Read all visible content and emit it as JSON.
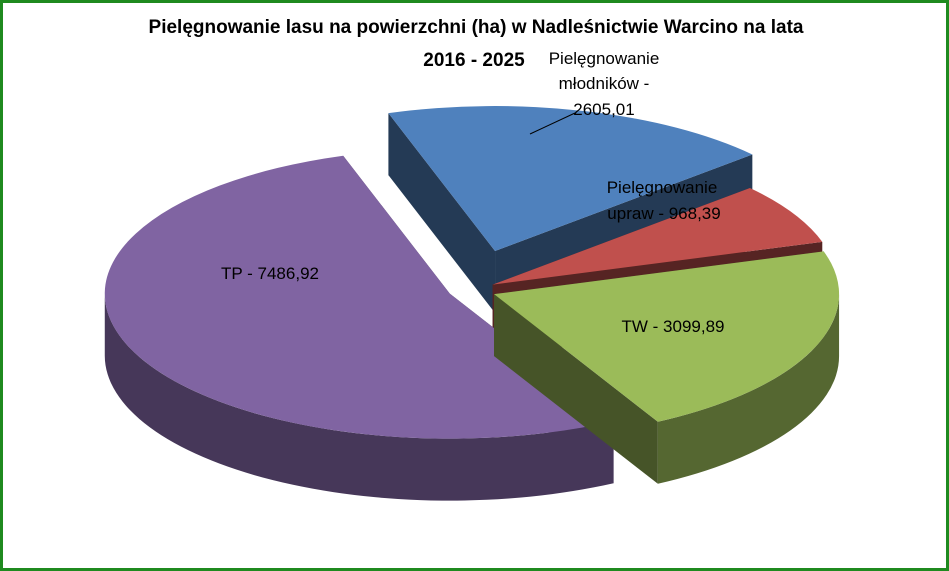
{
  "chart_data": {
    "type": "pie",
    "title_lines": [
      "Pielęgnowanie lasu na powierzchni (ha) w Nadleśnictwie Warcino na lata",
      "2016 - 2025"
    ],
    "slices": [
      {
        "label_lines": [
          "Pielęgnowanie",
          "młodników -",
          "2605,01"
        ],
        "value": 2605.01,
        "color": "#4f81bd"
      },
      {
        "label_lines": [
          "Pielęgnowanie",
          "upraw - 968,39"
        ],
        "value": 968.39,
        "color": "#c0504d"
      },
      {
        "label_lines": [
          "TW - 3099,89"
        ],
        "value": 3099.89,
        "color": "#9bbb59"
      },
      {
        "label_lines": [
          "TP - 7486,92"
        ],
        "value": 7486.92,
        "color": "#8064a2"
      }
    ],
    "style": "3d exploded pie",
    "legend": "none",
    "frame_color": "#1f8a1f"
  }
}
